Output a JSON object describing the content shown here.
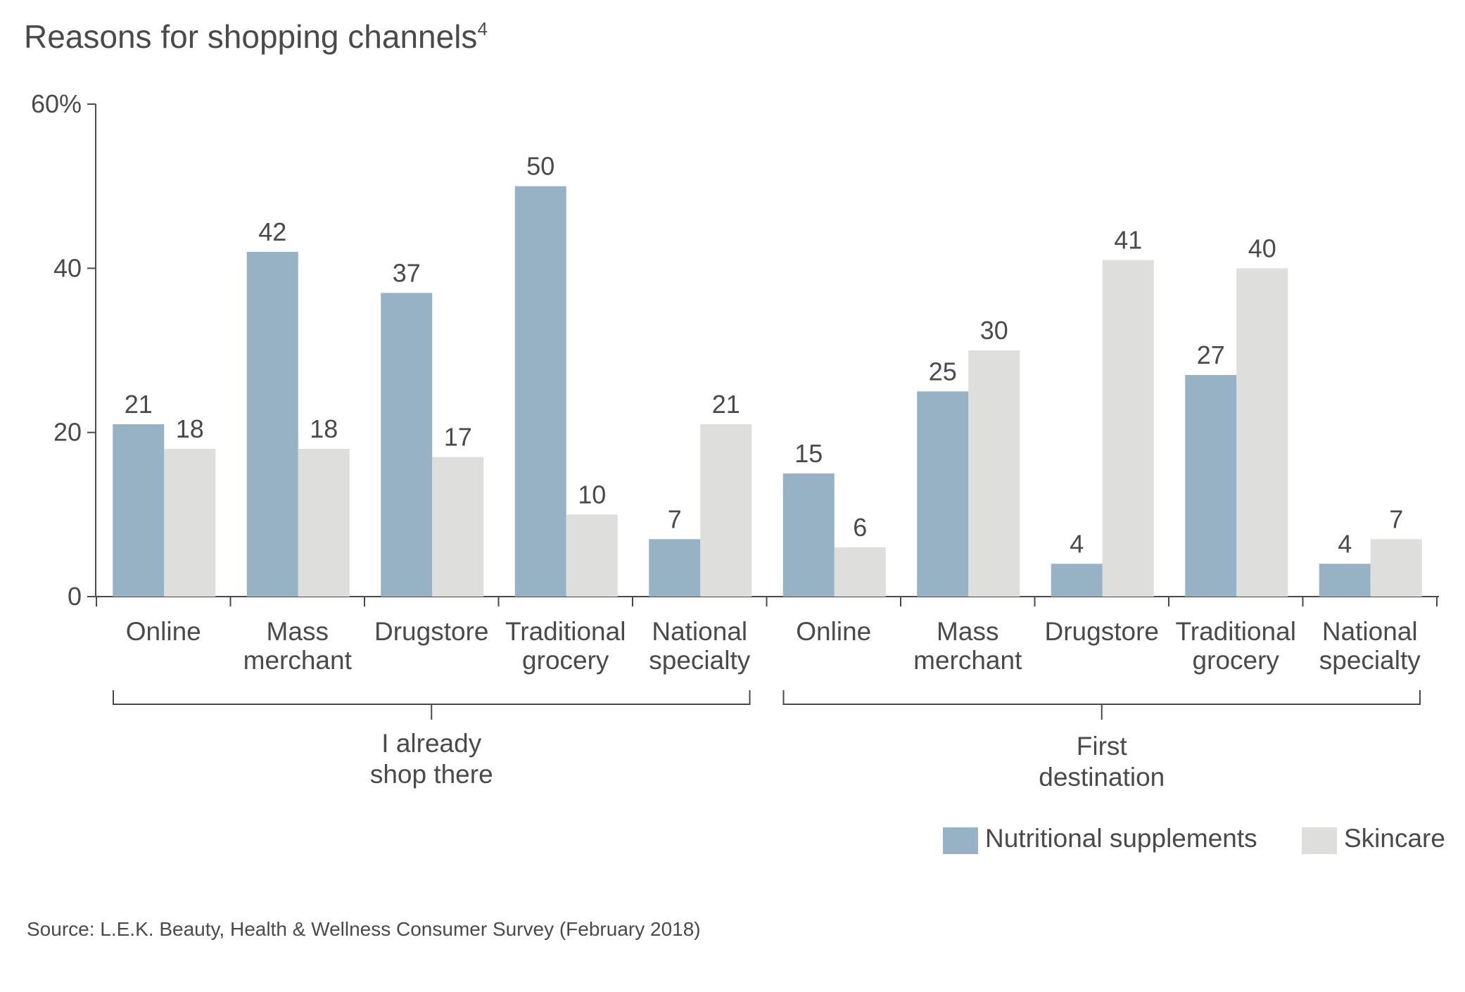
{
  "chart_data": {
    "type": "bar",
    "title": "Reasons for shopping channels",
    "title_superscript": "4",
    "ylabel": "",
    "xlabel": "",
    "ylim": [
      0,
      60
    ],
    "yticks": [
      0,
      20,
      40,
      60
    ],
    "ytick_labels": [
      "0",
      "20",
      "40",
      "60%"
    ],
    "groups": [
      {
        "label": [
          "I already",
          "shop there"
        ],
        "categories": [
          [
            "Online"
          ],
          [
            "Mass",
            "merchant"
          ],
          [
            "Drugstore"
          ],
          [
            "Traditional",
            "grocery"
          ],
          [
            "National",
            "specialty"
          ]
        ],
        "series": [
          {
            "name": "Nutritional supplements",
            "values": [
              21,
              42,
              37,
              50,
              7
            ]
          },
          {
            "name": "Skincare",
            "values": [
              18,
              18,
              17,
              10,
              21
            ]
          }
        ]
      },
      {
        "label": [
          "First",
          "destination"
        ],
        "categories": [
          [
            "Online"
          ],
          [
            "Mass",
            "merchant"
          ],
          [
            "Drugstore"
          ],
          [
            "Traditional",
            "grocery"
          ],
          [
            "National",
            "specialty"
          ]
        ],
        "series": [
          {
            "name": "Nutritional supplements",
            "values": [
              15,
              25,
              4,
              27,
              4
            ]
          },
          {
            "name": "Skincare",
            "values": [
              6,
              30,
              41,
              40,
              7
            ]
          }
        ]
      }
    ],
    "legend": {
      "placement": "bottom-right",
      "items": [
        {
          "name": "Nutritional supplements",
          "color": "#97b1c5"
        },
        {
          "name": "Skincare",
          "color": "#dededd"
        }
      ]
    },
    "colors": {
      "Nutritional supplements": "#97b1c5",
      "Skincare": "#dededd",
      "axis": "#4a4a4a"
    },
    "grid": false
  },
  "source": "Source: L.E.K. Beauty, Health & Wellness Consumer Survey (February 2018)"
}
